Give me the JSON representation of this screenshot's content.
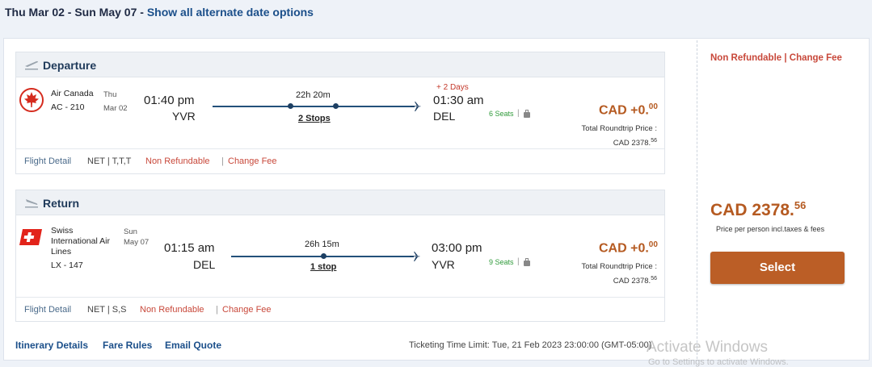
{
  "top": {
    "dates": "Thu Mar 02 - Sun May 07 - ",
    "alt_link": "Show all alternate date options"
  },
  "departure": {
    "header": "Departure",
    "airline": [
      "Air Canada",
      "AC - 210"
    ],
    "date": [
      "Thu",
      "Mar 02"
    ],
    "dep_time": "01:40 pm",
    "dep_code": "YVR",
    "duration": "22h 20m",
    "stops": "2 Stops",
    "plus_days": "+ 2 Days",
    "arr_time": "01:30 am",
    "arr_code": "DEL",
    "seats": "6 Seats",
    "seat_sep": "|",
    "price_main": "CAD +0.",
    "price_cents": "00",
    "total_label": "Total Roundtrip Price :",
    "total_main": "CAD 2378.",
    "total_cents": "56",
    "flight_detail": "Flight Detail",
    "fare": "NET | T,T,T",
    "non_refundable": "Non Refundable",
    "sep": "|",
    "change_fee": "Change Fee",
    "logo_color": "#d52b1e"
  },
  "return": {
    "header": "Return",
    "airline": [
      "Swiss",
      "International Air",
      "Lines",
      "LX - 147"
    ],
    "date": [
      "Sun",
      "May 07"
    ],
    "dep_time": "01:15 am",
    "dep_code": "DEL",
    "duration": "26h 15m",
    "stops": "1 stop",
    "arr_time": "03:00 pm",
    "arr_code": "YVR",
    "seats": "9 Seats",
    "seat_sep": "|",
    "price_main": "CAD +0.",
    "price_cents": "00",
    "total_label": "Total Roundtrip Price :",
    "total_main": "CAD 2378.",
    "total_cents": "56",
    "flight_detail": "Flight Detail",
    "fare": "NET | S,S",
    "non_refundable": "Non Refundable",
    "sep": "|",
    "change_fee": "Change Fee",
    "logo_color": "#e2231a"
  },
  "side": {
    "fare_rule": "Non Refundable | Change Fee",
    "price_main": "CAD 2378.",
    "price_cents": "56",
    "per_person": "Price per person incl.taxes & fees",
    "select": "Select"
  },
  "bottom": {
    "itinerary": "Itinerary Details",
    "fare_rules": "Fare Rules",
    "email": "Email Quote",
    "ticketing": "Ticketing Time Limit: Tue, 21 Feb 2023 23:00:00 (GMT-05:00)"
  },
  "watermark": {
    "line1": "Activate Windows",
    "line2": "Go to Settings to activate Windows."
  },
  "colors": {
    "accent": "#bb5e26",
    "link": "#1b4f8a",
    "alert": "#c8483a",
    "seats": "#2f9a3a"
  }
}
